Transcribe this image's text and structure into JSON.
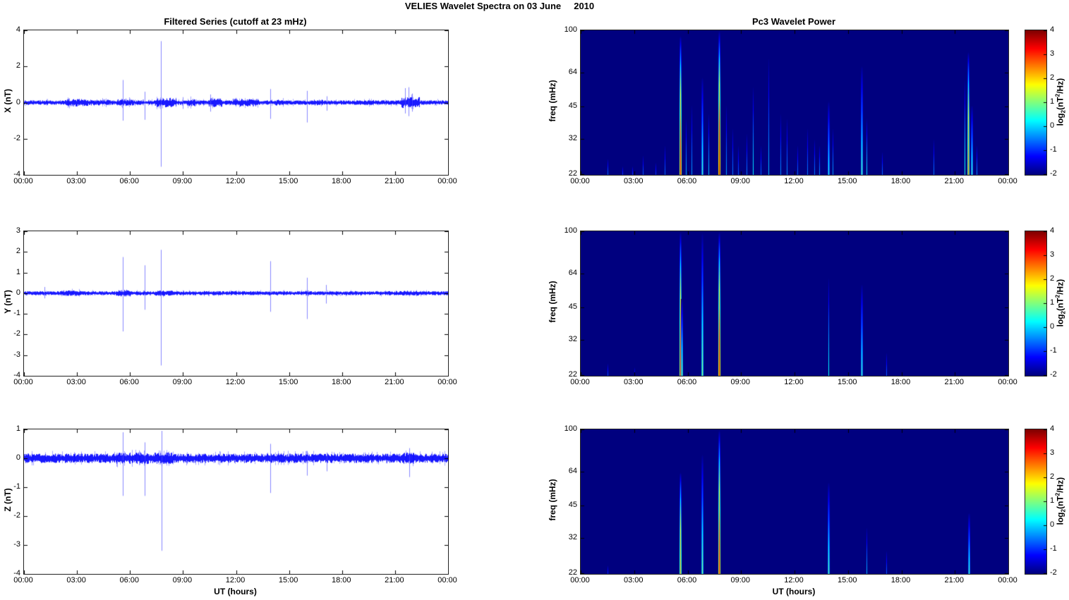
{
  "figure": {
    "title": "VELIES Wavelet Spectra on 03 June     2010"
  },
  "chart_data": {
    "left_column_title": "Filtered Series (cutoff at 23 mHz)",
    "right_column_title": "Pc3 Wavelet Power",
    "time_axis": {
      "label": "UT (hours)",
      "ticks": [
        "00:00",
        "03:00",
        "06:00",
        "09:00",
        "12:00",
        "15:00",
        "18:00",
        "21:00",
        "00:00"
      ],
      "hours_range": [
        0,
        24
      ]
    },
    "colorbar": {
      "ticks": [
        4,
        3,
        2,
        1,
        0,
        -1,
        -2
      ],
      "range": [
        -2,
        4
      ],
      "colormap": "jet",
      "label_parts": {
        "pre": "log",
        "sub": "2",
        "mid": "(nT",
        "sup": "2",
        "post": "/Hz)"
      }
    },
    "series_columns_note": "spikes = [hour, max_nT, min_nT]; noise bursts = [start_hour, end_hour, amplitude_nT]",
    "series": [
      {
        "name": "X",
        "type": "line",
        "ylabel": "X (nT)",
        "ylim": [
          -4,
          4
        ],
        "yticks": [
          4,
          2,
          0,
          -2,
          -4
        ],
        "line_color": "#0000ff",
        "noise": {
          "base": 0.1,
          "bursts": [
            [
              2.3,
              3.6,
              0.17
            ],
            [
              3.6,
              4.9,
              0.13
            ],
            [
              5.3,
              6.2,
              0.15
            ],
            [
              7.4,
              8.6,
              0.21
            ],
            [
              9.2,
              9.7,
              0.17
            ],
            [
              10.4,
              11.2,
              0.2
            ],
            [
              11.8,
              13.3,
              0.17
            ],
            [
              14.2,
              14.7,
              0.13
            ],
            [
              16.3,
              16.9,
              0.13
            ],
            [
              19.2,
              19.8,
              0.12
            ],
            [
              21.3,
              22.4,
              0.24
            ]
          ]
        },
        "spikes": [
          [
            5.58,
            1.25,
            -1.0
          ],
          [
            6.83,
            0.6,
            -0.95
          ],
          [
            7.75,
            3.4,
            -3.55
          ],
          [
            9.0,
            0.3,
            -0.35
          ],
          [
            10.55,
            0.45,
            -0.5
          ],
          [
            13.92,
            0.75,
            -0.9
          ],
          [
            16.0,
            0.65,
            -1.1
          ],
          [
            17.15,
            0.35,
            -0.45
          ],
          [
            21.55,
            0.8,
            -0.6
          ],
          [
            21.75,
            0.85,
            -0.75
          ],
          [
            21.95,
            0.5,
            -0.5
          ]
        ]
      },
      {
        "name": "Y",
        "type": "line",
        "ylabel": "Y (nT)",
        "ylim": [
          -4,
          3
        ],
        "yticks": [
          3,
          2,
          1,
          0,
          -1,
          -2,
          -3,
          -4
        ],
        "line_color": "#0000ff",
        "noise": {
          "base": 0.08,
          "bursts": [
            [
              2.2,
              3.2,
              0.11
            ],
            [
              5.2,
              6.0,
              0.13
            ],
            [
              7.4,
              8.4,
              0.11
            ],
            [
              21.3,
              22.3,
              0.1
            ]
          ]
        },
        "spikes": [
          [
            1.15,
            0.3,
            -0.25
          ],
          [
            5.58,
            1.75,
            -1.85
          ],
          [
            6.83,
            1.35,
            -0.8
          ],
          [
            7.75,
            2.1,
            -3.5
          ],
          [
            13.92,
            1.55,
            -0.9
          ],
          [
            16.0,
            0.75,
            -1.25
          ],
          [
            17.1,
            0.4,
            -0.5
          ]
        ]
      },
      {
        "name": "Z",
        "type": "line",
        "ylabel": "Z (nT)",
        "ylim": [
          -4,
          1
        ],
        "yticks": [
          1,
          0,
          -1,
          -2,
          -3,
          -4
        ],
        "line_color": "#0000ff",
        "noise": {
          "base": 0.13,
          "bursts": [
            [
              5.2,
              8.4,
              0.16
            ],
            [
              21.4,
              22.2,
              0.16
            ]
          ]
        },
        "spikes": [
          [
            5.58,
            0.9,
            -1.3
          ],
          [
            6.83,
            0.55,
            -1.3
          ],
          [
            7.8,
            0.95,
            -3.2
          ],
          [
            13.92,
            0.5,
            -1.2
          ],
          [
            16.0,
            0.25,
            -0.6
          ],
          [
            17.15,
            0.2,
            -0.45
          ],
          [
            21.8,
            0.35,
            -0.65
          ]
        ]
      }
    ],
    "spectrograms_note": "events = [hour, top_freq_mHz, peak_log2_power_at_bottom]; freq axis is logarithmic 22-100 mHz; background level = -2",
    "spectrograms": [
      {
        "name": "X",
        "type": "heatmap",
        "ylabel": "freq (mHz)",
        "yticks": [
          100,
          64,
          45,
          32,
          22
        ],
        "freq_range": [
          22,
          100
        ],
        "background_level": -2,
        "events": [
          [
            1.5,
            26,
            -0.6
          ],
          [
            2.35,
            24,
            -0.9
          ],
          [
            2.9,
            24,
            -0.9
          ],
          [
            3.5,
            27,
            -0.7
          ],
          [
            4.2,
            25,
            -0.9
          ],
          [
            4.7,
            30,
            -0.6
          ],
          [
            5.58,
            95,
            3.3
          ],
          [
            5.9,
            40,
            -0.2
          ],
          [
            6.2,
            46,
            -0.3
          ],
          [
            6.83,
            62,
            0.7
          ],
          [
            7.15,
            42,
            -0.1
          ],
          [
            7.75,
            100,
            3.8
          ],
          [
            8.15,
            46,
            -0.3
          ],
          [
            8.5,
            36,
            -0.5
          ],
          [
            8.85,
            30,
            -0.7
          ],
          [
            9.3,
            34,
            -0.5
          ],
          [
            9.65,
            56,
            0.2
          ],
          [
            10.1,
            30,
            -0.6
          ],
          [
            10.55,
            76,
            -0.1
          ],
          [
            11.2,
            42,
            -0.4
          ],
          [
            11.55,
            40,
            -0.4
          ],
          [
            12.15,
            30,
            -0.6
          ],
          [
            12.7,
            36,
            -0.5
          ],
          [
            13.1,
            32,
            -0.5
          ],
          [
            13.4,
            30,
            -0.4
          ],
          [
            13.92,
            48,
            0.5
          ],
          [
            14.15,
            36,
            -0.3
          ],
          [
            15.78,
            70,
            0.8
          ],
          [
            16.05,
            40,
            0.1
          ],
          [
            16.9,
            28,
            -0.6
          ],
          [
            19.8,
            32,
            -0.5
          ],
          [
            21.55,
            60,
            0.4
          ],
          [
            21.75,
            80,
            2.6
          ],
          [
            21.95,
            46,
            0.7
          ],
          [
            22.2,
            30,
            -0.4
          ]
        ]
      },
      {
        "name": "Y",
        "type": "heatmap",
        "ylabel": "freq (mHz)",
        "yticks": [
          100,
          64,
          45,
          32,
          22
        ],
        "freq_range": [
          22,
          100
        ],
        "background_level": -2,
        "events": [
          [
            1.5,
            25,
            -0.8
          ],
          [
            3.0,
            24,
            -1.0
          ],
          [
            5.58,
            100,
            3.0
          ],
          [
            5.68,
            50,
            1.0
          ],
          [
            6.83,
            100,
            1.1
          ],
          [
            7.75,
            100,
            3.5
          ],
          [
            13.92,
            62,
            0.3
          ],
          [
            15.78,
            58,
            0.7
          ],
          [
            17.15,
            28,
            -0.7
          ]
        ]
      },
      {
        "name": "Z",
        "type": "heatmap",
        "ylabel": "freq (mHz)",
        "yticks": [
          100,
          64,
          45,
          32,
          22
        ],
        "freq_range": [
          22,
          100
        ],
        "background_level": -2,
        "events": [
          [
            1.5,
            24,
            -1.0
          ],
          [
            5.58,
            64,
            2.4
          ],
          [
            6.83,
            78,
            1.0
          ],
          [
            7.78,
            100,
            3.3
          ],
          [
            13.92,
            58,
            0.8
          ],
          [
            16.05,
            36,
            -0.2
          ],
          [
            17.15,
            28,
            -0.7
          ],
          [
            21.8,
            42,
            0.7
          ]
        ]
      }
    ]
  }
}
